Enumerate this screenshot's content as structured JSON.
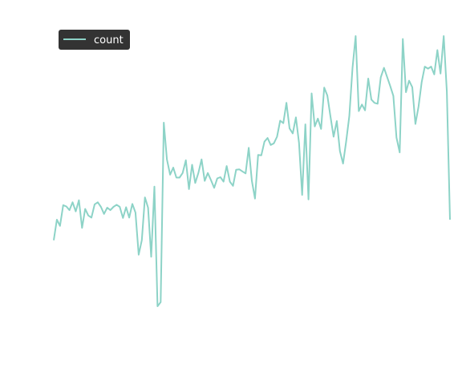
{
  "chart_data": {
    "type": "line",
    "title": "",
    "xlabel": "",
    "ylabel": "",
    "grid": false,
    "axes_visible": false,
    "legend_position": "top-left",
    "legend_background": "#333333",
    "series": [
      {
        "name": "count",
        "color": "#8dd3c7",
        "values": [
          3.1,
          3.6,
          3.45,
          3.95,
          3.92,
          3.83,
          4.02,
          3.8,
          4.07,
          3.4,
          3.86,
          3.7,
          3.65,
          3.97,
          4.02,
          3.91,
          3.74,
          3.89,
          3.83,
          3.91,
          3.96,
          3.91,
          3.64,
          3.9,
          3.65,
          3.98,
          3.77,
          2.75,
          3.1,
          4.14,
          3.89,
          2.7,
          4.4,
          1.5,
          1.6,
          5.95,
          5.06,
          4.69,
          4.86,
          4.62,
          4.62,
          4.73,
          5.04,
          4.34,
          4.93,
          4.49,
          4.73,
          5.06,
          4.54,
          4.73,
          4.56,
          4.37,
          4.6,
          4.63,
          4.52,
          4.9,
          4.52,
          4.42,
          4.81,
          4.82,
          4.77,
          4.72,
          5.34,
          4.54,
          4.11,
          5.17,
          5.16,
          5.49,
          5.58,
          5.41,
          5.45,
          5.61,
          6.0,
          5.94,
          6.43,
          5.81,
          5.69,
          6.08,
          5.46,
          4.2,
          5.91,
          4.09,
          6.66,
          5.86,
          6.05,
          5.8,
          6.8,
          6.61,
          6.1,
          5.61,
          5.99,
          5.26,
          4.96,
          5.5,
          6.11,
          7.28,
          8.05,
          6.23,
          6.39,
          6.25,
          7.02,
          6.51,
          6.43,
          6.41,
          7.05,
          7.28,
          7.06,
          6.84,
          6.6,
          5.59,
          5.23,
          7.98,
          6.69,
          6.97,
          6.81,
          5.92,
          6.34,
          6.93,
          7.31,
          7.26,
          7.31,
          7.12,
          7.71,
          7.14,
          8.05,
          6.7,
          3.6
        ]
      }
    ]
  }
}
